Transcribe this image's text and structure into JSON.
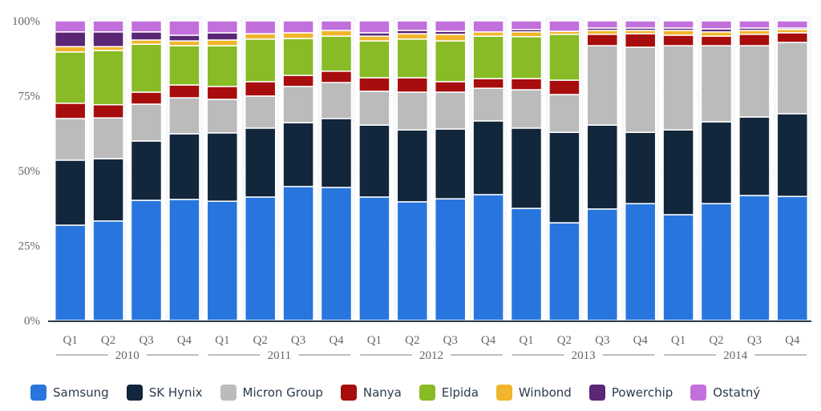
{
  "chart_data": {
    "type": "bar",
    "stacked": true,
    "title": "",
    "xlabel": "",
    "ylabel": "",
    "ylim": [
      0,
      100
    ],
    "y_ticks": [
      "0%",
      "25%",
      "50%",
      "75%",
      "100%"
    ],
    "y_tick_values": [
      0,
      25,
      50,
      75,
      100
    ],
    "grid": true,
    "legend_position": "bottom",
    "categories": [
      "Q1",
      "Q2",
      "Q3",
      "Q4",
      "Q1",
      "Q2",
      "Q3",
      "Q4",
      "Q1",
      "Q2",
      "Q3",
      "Q4",
      "Q1",
      "Q2",
      "Q3",
      "Q4",
      "Q1",
      "Q2",
      "Q3",
      "Q4"
    ],
    "groups": [
      {
        "label": "2010",
        "count": 4
      },
      {
        "label": "2011",
        "count": 4
      },
      {
        "label": "2012",
        "count": 4
      },
      {
        "label": "2013",
        "count": 4
      },
      {
        "label": "2014",
        "count": 4
      }
    ],
    "series": [
      {
        "name": "Samsung",
        "color": "#2876dd",
        "values": [
          31.8,
          33.2,
          40.1,
          40.4,
          39.8,
          41.2,
          44.7,
          44.4,
          41.2,
          39.6,
          40.6,
          42.0,
          37.4,
          32.6,
          37.2,
          39.0,
          35.3,
          39.0,
          41.7,
          41.4
        ]
      },
      {
        "name": "SK Hynix",
        "color": "#12263c",
        "values": [
          21.7,
          20.8,
          19.8,
          21.9,
          22.8,
          23.0,
          21.3,
          23.0,
          24.0,
          24.0,
          23.3,
          24.6,
          26.8,
          30.2,
          28.0,
          23.8,
          28.3,
          27.3,
          26.2,
          27.6
        ]
      },
      {
        "name": "Micron Group",
        "color": "#bbbbbb",
        "values": [
          13.9,
          13.6,
          12.3,
          12.0,
          11.2,
          10.7,
          12.1,
          12.0,
          11.3,
          12.6,
          12.3,
          10.9,
          12.8,
          12.6,
          26.5,
          28.4,
          28.1,
          25.4,
          23.8,
          23.8
        ]
      },
      {
        "name": "Nanya",
        "color": "#a80d0d",
        "values": [
          5.1,
          4.4,
          4.0,
          4.3,
          4.3,
          4.8,
          3.7,
          3.8,
          4.5,
          4.8,
          3.5,
          3.2,
          3.7,
          4.8,
          3.8,
          4.5,
          3.5,
          3.2,
          3.8,
          3.2
        ]
      },
      {
        "name": "Elpida",
        "color": "#88bb25",
        "values": [
          17.1,
          18.1,
          16.0,
          13.1,
          13.6,
          14.2,
          12.3,
          11.7,
          12.3,
          12.9,
          13.6,
          14.2,
          14.0,
          15.3,
          0,
          0,
          0,
          0,
          0,
          0
        ]
      },
      {
        "name": "Winbond",
        "color": "#f0b52c",
        "values": [
          1.8,
          1.3,
          1.4,
          1.6,
          1.9,
          1.8,
          1.9,
          1.9,
          1.6,
          1.8,
          2.2,
          1.4,
          1.6,
          1.0,
          1.3,
          1.1,
          1.6,
          1.4,
          1.3,
          1.1
        ]
      },
      {
        "name": "Powerchip",
        "color": "#5b2676",
        "values": [
          4.9,
          4.9,
          2.7,
          1.9,
          2.4,
          0,
          0,
          0,
          1.1,
          1.1,
          1.0,
          0,
          0.8,
          0,
          0.8,
          0.8,
          0.8,
          1.0,
          0.8,
          0.5
        ]
      },
      {
        "name": "Ostatný",
        "color": "#c270dc",
        "values": [
          3.7,
          3.7,
          3.7,
          4.8,
          4.0,
          4.3,
          4.0,
          3.2,
          4.0,
          3.2,
          3.5,
          3.7,
          2.9,
          3.5,
          2.4,
          2.4,
          2.4,
          2.7,
          2.4,
          2.4
        ]
      }
    ]
  }
}
